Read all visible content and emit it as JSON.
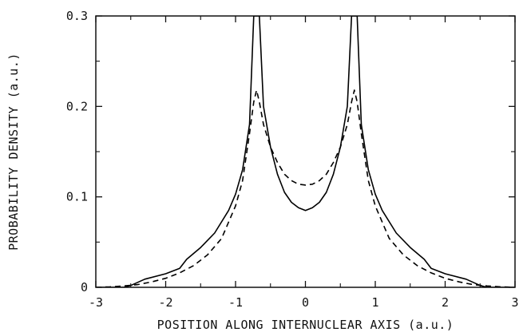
{
  "chart_data": {
    "type": "line",
    "title": "",
    "xlabel": "POSITION ALONG INTERNUCLEAR AXIS (a.u.)",
    "ylabel": "PROBABILITY DENSITY (a.u.)",
    "xlim": [
      -3,
      3
    ],
    "ylim": [
      0,
      0.3
    ],
    "xticks": [
      -3,
      -2,
      -1,
      0,
      1,
      2,
      3
    ],
    "xtick_labels": [
      "-3",
      "-2",
      "-1",
      "0",
      "1",
      "2",
      "3"
    ],
    "yticks": [
      0,
      0.1,
      0.2,
      0.3
    ],
    "ytick_labels": [
      "0",
      "0.1",
      "0.2",
      "0.3"
    ],
    "grid": false,
    "legend": "none",
    "series": [
      {
        "style": "solid",
        "color": "#000000",
        "x": [
          -3.0,
          -2.8,
          -2.6,
          -2.5,
          -2.3,
          -2.0,
          -1.8,
          -1.7,
          -1.5,
          -1.3,
          -1.1,
          -1.0,
          -0.9,
          -0.8,
          -0.74,
          -0.7,
          -0.66,
          -0.6,
          -0.5,
          -0.4,
          -0.3,
          -0.2,
          -0.1,
          0.0,
          0.1,
          0.2,
          0.3,
          0.4,
          0.5,
          0.6,
          0.66,
          0.7,
          0.74,
          0.8,
          0.9,
          1.0,
          1.1,
          1.3,
          1.5,
          1.7,
          1.8,
          2.0,
          2.3,
          2.5,
          2.6,
          2.8,
          3.0
        ],
        "values": [
          0.0,
          0.0,
          0.0,
          0.002,
          0.009,
          0.015,
          0.021,
          0.031,
          0.044,
          0.06,
          0.085,
          0.103,
          0.13,
          0.18,
          0.3,
          0.3,
          0.3,
          0.2,
          0.155,
          0.125,
          0.105,
          0.094,
          0.088,
          0.085,
          0.088,
          0.094,
          0.105,
          0.125,
          0.155,
          0.2,
          0.3,
          0.3,
          0.3,
          0.18,
          0.13,
          0.103,
          0.085,
          0.06,
          0.044,
          0.031,
          0.021,
          0.015,
          0.009,
          0.002,
          0.0,
          0.0,
          0.0
        ]
      },
      {
        "style": "dashed",
        "color": "#000000",
        "x": [
          -3.0,
          -2.8,
          -2.6,
          -2.4,
          -2.2,
          -2.0,
          -1.8,
          -1.6,
          -1.4,
          -1.2,
          -1.0,
          -0.9,
          -0.8,
          -0.74,
          -0.7,
          -0.66,
          -0.6,
          -0.5,
          -0.4,
          -0.3,
          -0.2,
          -0.1,
          0.0,
          0.1,
          0.2,
          0.3,
          0.4,
          0.5,
          0.6,
          0.66,
          0.7,
          0.74,
          0.8,
          0.9,
          1.0,
          1.2,
          1.4,
          1.6,
          1.8,
          2.0,
          2.2,
          2.4,
          2.6,
          2.8,
          3.0
        ],
        "values": [
          0.0,
          0.0005,
          0.0015,
          0.003,
          0.006,
          0.01,
          0.016,
          0.024,
          0.036,
          0.054,
          0.09,
          0.118,
          0.17,
          0.205,
          0.218,
          0.205,
          0.18,
          0.155,
          0.138,
          0.125,
          0.118,
          0.114,
          0.113,
          0.114,
          0.118,
          0.125,
          0.138,
          0.155,
          0.18,
          0.205,
          0.218,
          0.205,
          0.17,
          0.118,
          0.09,
          0.054,
          0.036,
          0.024,
          0.016,
          0.01,
          0.006,
          0.003,
          0.0015,
          0.0005,
          0.0
        ]
      }
    ]
  }
}
